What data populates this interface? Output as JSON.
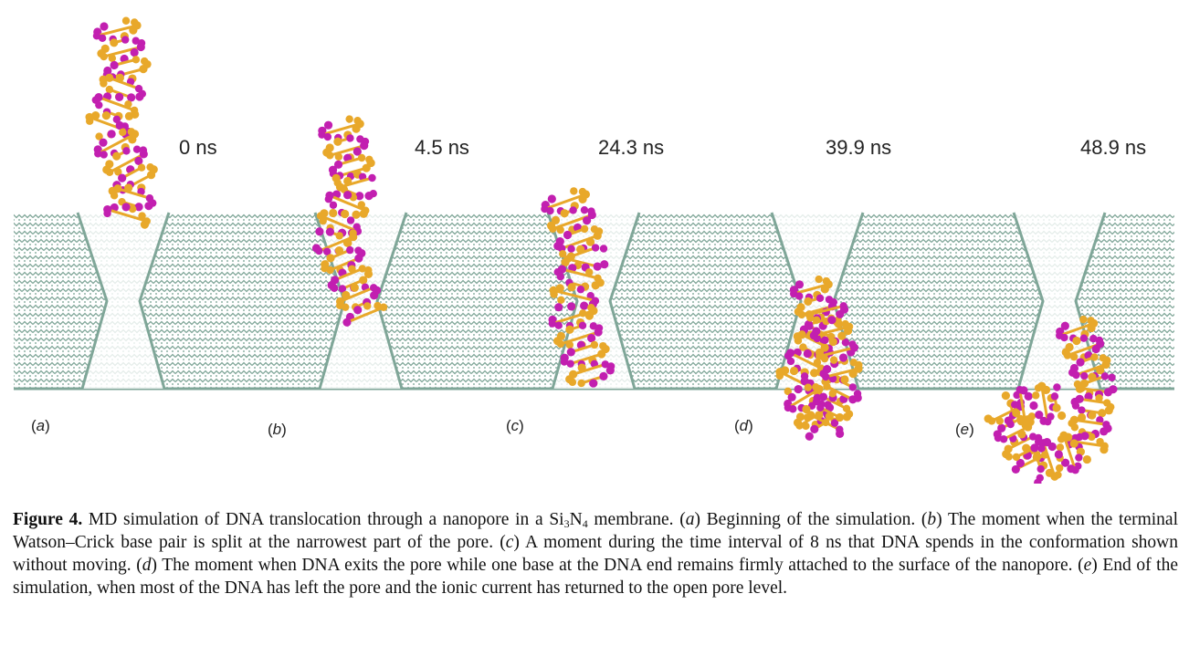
{
  "panels": [
    {
      "label_open": "(",
      "label_letter": "a",
      "label_close": ")",
      "time": "0 ns"
    },
    {
      "label_open": "(",
      "label_letter": "b",
      "label_close": ")",
      "time": "4.5 ns"
    },
    {
      "label_open": "(",
      "label_letter": "c",
      "label_close": ")",
      "time": "24.3 ns"
    },
    {
      "label_open": "(",
      "label_letter": "d",
      "label_close": ")",
      "time": "39.9 ns"
    },
    {
      "label_open": "(",
      "label_letter": "e",
      "label_close": ")",
      "time": "48.9 ns"
    }
  ],
  "colors": {
    "membrane": "#7fa698",
    "membrane_light": "#c7d9d1",
    "dna_strand_1": "#c21fb0",
    "dna_strand_2": "#e8a82a"
  },
  "caption": {
    "figure_label": "Figure 4.",
    "p1": " MD simulation of DNA translocation through a nanopore in a Si",
    "sub1": "3",
    "p2": "N",
    "sub2": "4",
    "p3": " membrane. (",
    "a": "a",
    "p4": ") Beginning of the simulation. (",
    "b": "b",
    "p5": ") The moment when the terminal Watson–Crick base pair is split at the narrowest part of the pore. (",
    "c": "c",
    "p6": ") A moment during the time interval of 8 ns that DNA spends in the conformation shown without moving. (",
    "d": "d",
    "p7": ") The moment when DNA exits the pore while one base at the DNA end remains firmly attached to the surface of the nanopore. (",
    "e": "e",
    "p8": ") End of the simulation, when most of the DNA has left the pore and the ionic current has returned to the open pore level."
  }
}
